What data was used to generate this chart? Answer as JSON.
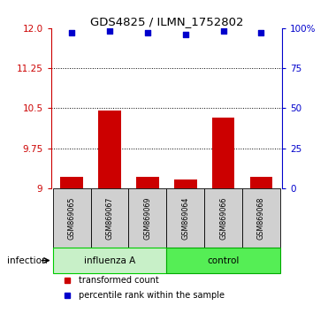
{
  "title": "GDS4825 / ILMN_1752802",
  "samples": [
    "GSM869065",
    "GSM869067",
    "GSM869069",
    "GSM869064",
    "GSM869066",
    "GSM869068"
  ],
  "transformed_counts": [
    9.22,
    10.45,
    9.21,
    9.17,
    10.32,
    9.22
  ],
  "percentile_ranks": [
    97,
    98,
    97,
    96,
    98,
    97
  ],
  "groups": [
    "influenza A",
    "influenza A",
    "influenza A",
    "control",
    "control",
    "control"
  ],
  "influenza_color_light": "#C8F0C8",
  "influenza_color_dark": "#00CC00",
  "control_color_light": "#55EE55",
  "control_color_dark": "#00AA00",
  "bar_color": "#CC0000",
  "percentile_color": "#0000CC",
  "sample_box_color": "#D0D0D0",
  "ylim_left": [
    9.0,
    12.0
  ],
  "ylim_right": [
    0,
    100
  ],
  "yticks_left": [
    9.0,
    9.75,
    10.5,
    11.25,
    12.0
  ],
  "yticks_right": [
    0,
    25,
    50,
    75,
    100
  ],
  "grid_values": [
    9.75,
    10.5,
    11.25
  ],
  "factor_label": "infection",
  "legend_items": [
    "transformed count",
    "percentile rank within the sample"
  ],
  "label_color_left": "#CC0000",
  "label_color_right": "#0000CC",
  "bar_width": 0.6
}
